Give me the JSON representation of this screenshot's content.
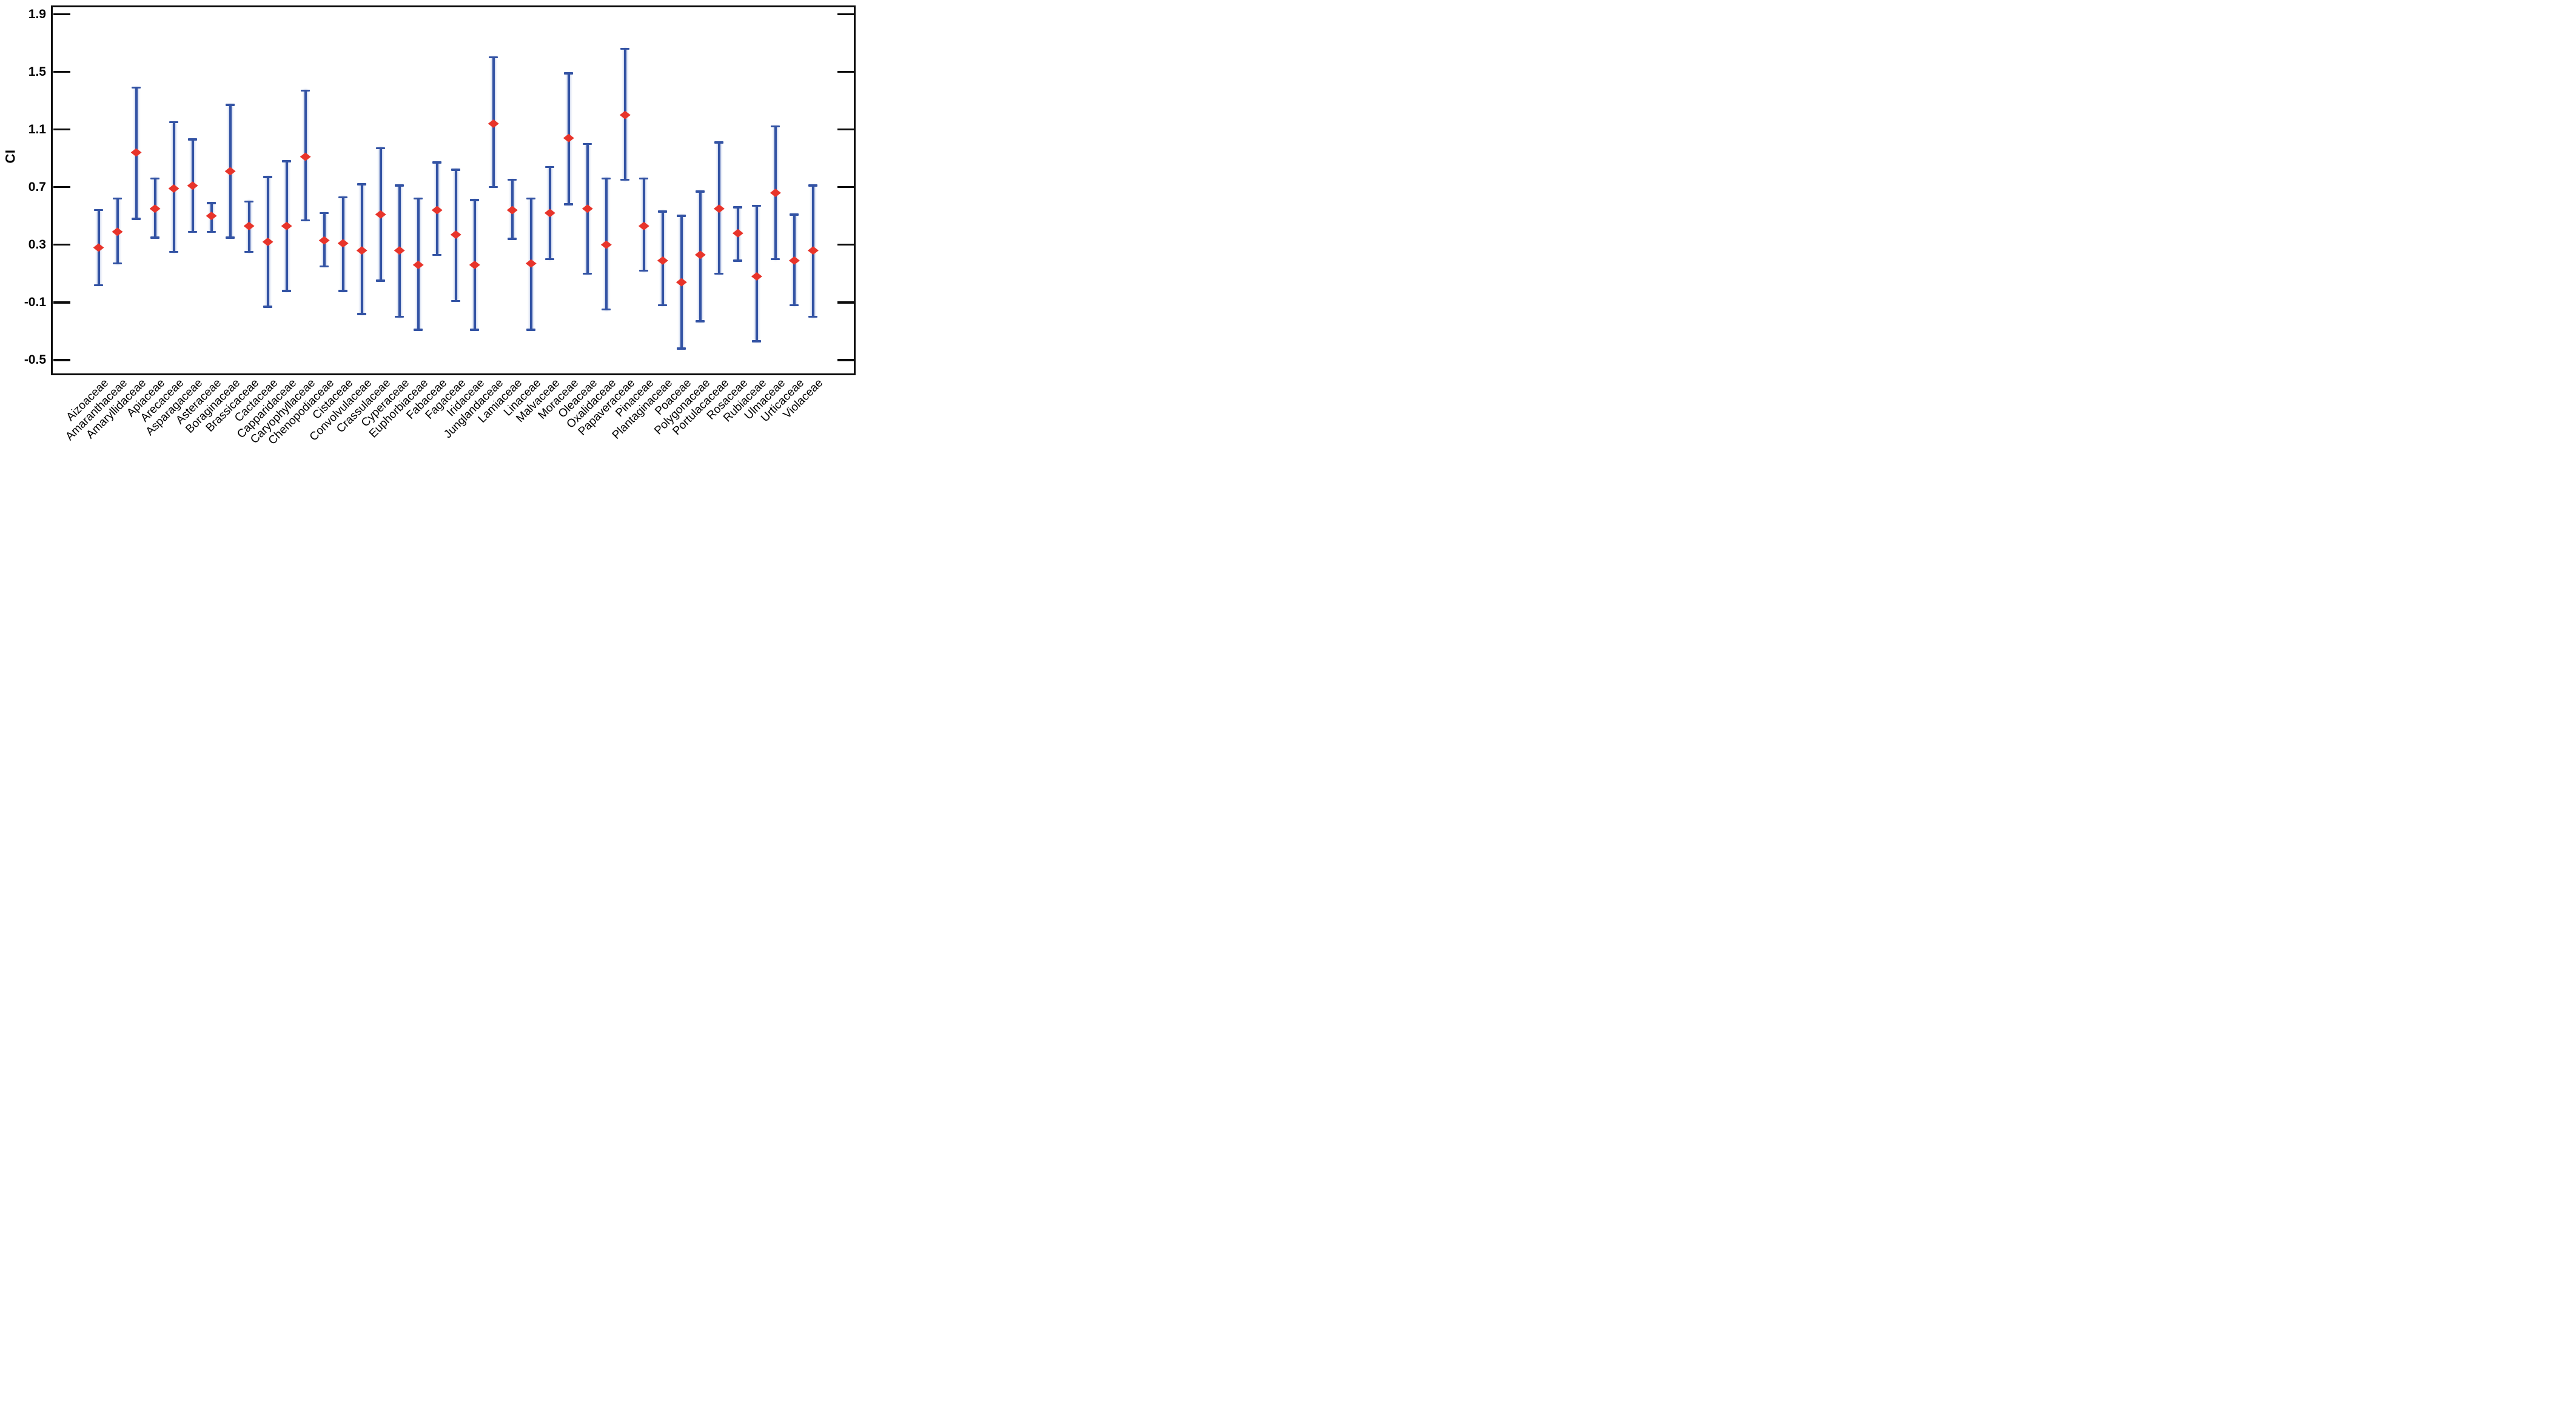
{
  "figure": {
    "background": "#ffffff"
  },
  "colors": {
    "marker_red": "#e8342a",
    "errorbar_blue": "#3353a4",
    "axis_black": "#0d0d0d"
  },
  "chart_data": {
    "type": "scatter",
    "subtype": "point-with-error-bars",
    "title": "",
    "xlabel": "",
    "ylabel": "CI",
    "ylim": [
      -0.58,
      1.96
    ],
    "yticks": [
      "1.9",
      "1.5",
      "1.1",
      "0.7",
      "0.3",
      "-0.1",
      "-0.5"
    ],
    "ytick_values": [
      1.9,
      1.5,
      1.1,
      0.7,
      0.3,
      -0.1,
      -0.5
    ],
    "grid": false,
    "legend": "none",
    "marker_shape": "diamond",
    "categories": [
      "Aizoaceae",
      "Amaranthaceae",
      "Amaryllidaceae",
      "Apiaceae",
      "Arecaceae",
      "Asparagaceae",
      "Asteraceae",
      "Boraginaceae",
      "Brassicaceae",
      "Cactaceae",
      "Capparidaceae",
      "Caryophyllaceae",
      "Chenopodiaceae",
      "Cistaceae",
      "Convolvulaceae",
      "Crassulaceae",
      "Cyperaceae",
      "Euphorbiaceae",
      "Fabaceae",
      "Fagaceae",
      "Iridaceae",
      "Junglandaceae",
      "Lamiaceae",
      "Linaceae",
      "Malvaceae",
      "Moraceae",
      "Oleaceae",
      "Oxalidaceae",
      "Papaveraceae",
      "Pinaceae",
      "Plantaginaceae",
      "Poaceae",
      "Polygonaceae",
      "Portulacaceae",
      "Rosaceae",
      "Rubiaceae",
      "Ulmaceae",
      "Urticaceae",
      "Violaceae"
    ],
    "points": [
      {
        "label": "Aizoaceae",
        "value": 0.28,
        "lo": 0.02,
        "hi": 0.54
      },
      {
        "label": "Amaranthaceae",
        "value": 0.39,
        "lo": 0.17,
        "hi": 0.62
      },
      {
        "label": "Amaryllidaceae",
        "value": 0.94,
        "lo": 0.48,
        "hi": 1.39
      },
      {
        "label": "Apiaceae",
        "value": 0.55,
        "lo": 0.35,
        "hi": 0.76
      },
      {
        "label": "Arecaceae",
        "value": 0.69,
        "lo": 0.25,
        "hi": 1.15
      },
      {
        "label": "Asparagaceae",
        "value": 0.71,
        "lo": 0.39,
        "hi": 1.03
      },
      {
        "label": "Asteraceae",
        "value": 0.5,
        "lo": 0.39,
        "hi": 0.59
      },
      {
        "label": "Boraginaceae",
        "value": 0.81,
        "lo": 0.35,
        "hi": 1.27
      },
      {
        "label": "Brassicaceae",
        "value": 0.43,
        "lo": 0.25,
        "hi": 0.6
      },
      {
        "label": "Cactaceae",
        "value": 0.32,
        "lo": -0.13,
        "hi": 0.77
      },
      {
        "label": "Capparidaceae",
        "value": 0.43,
        "lo": -0.02,
        "hi": 0.88
      },
      {
        "label": "Caryophyllaceae",
        "value": 0.91,
        "lo": 0.47,
        "hi": 1.37
      },
      {
        "label": "Chenopodiaceae",
        "value": 0.33,
        "lo": 0.15,
        "hi": 0.52
      },
      {
        "label": "Cistaceae",
        "value": 0.31,
        "lo": -0.02,
        "hi": 0.63
      },
      {
        "label": "Convolvulaceae",
        "value": 0.26,
        "lo": -0.18,
        "hi": 0.72
      },
      {
        "label": "Crassulaceae",
        "value": 0.51,
        "lo": 0.05,
        "hi": 0.97
      },
      {
        "label": "Cyperaceae",
        "value": 0.26,
        "lo": -0.2,
        "hi": 0.71
      },
      {
        "label": "Euphorbiaceae",
        "value": 0.16,
        "lo": -0.29,
        "hi": 0.62
      },
      {
        "label": "Fabaceae",
        "value": 0.54,
        "lo": 0.23,
        "hi": 0.87
      },
      {
        "label": "Fagaceae",
        "value": 0.37,
        "lo": -0.09,
        "hi": 0.82
      },
      {
        "label": "Iridaceae",
        "value": 0.16,
        "lo": -0.29,
        "hi": 0.61
      },
      {
        "label": "Junglandaceae",
        "value": 1.14,
        "lo": 0.7,
        "hi": 1.6
      },
      {
        "label": "Lamiaceae",
        "value": 0.54,
        "lo": 0.34,
        "hi": 0.75
      },
      {
        "label": "Linaceae",
        "value": 0.17,
        "lo": -0.29,
        "hi": 0.62
      },
      {
        "label": "Malvaceae",
        "value": 0.52,
        "lo": 0.2,
        "hi": 0.84
      },
      {
        "label": "Moraceae",
        "value": 1.04,
        "lo": 0.58,
        "hi": 1.49
      },
      {
        "label": "Oleaceae",
        "value": 0.55,
        "lo": 0.1,
        "hi": 1.0
      },
      {
        "label": "Oxalidaceae",
        "value": 0.3,
        "lo": -0.15,
        "hi": 0.76
      },
      {
        "label": "Papaveraceae",
        "value": 1.2,
        "lo": 0.75,
        "hi": 1.66
      },
      {
        "label": "Pinaceae",
        "value": 0.43,
        "lo": 0.12,
        "hi": 0.76
      },
      {
        "label": "Plantaginaceae",
        "value": 0.19,
        "lo": -0.12,
        "hi": 0.53
      },
      {
        "label": "Poaceae",
        "value": 0.04,
        "lo": -0.42,
        "hi": 0.5
      },
      {
        "label": "Polygonaceae",
        "value": 0.23,
        "lo": -0.23,
        "hi": 0.67
      },
      {
        "label": "Portulacaceae",
        "value": 0.55,
        "lo": 0.1,
        "hi": 1.01
      },
      {
        "label": "Rosaceae",
        "value": 0.38,
        "lo": 0.19,
        "hi": 0.56
      },
      {
        "label": "Rubiaceae",
        "value": 0.08,
        "lo": -0.37,
        "hi": 0.57
      },
      {
        "label": "Ulmaceae",
        "value": 0.66,
        "lo": 0.2,
        "hi": 1.12
      },
      {
        "label": "Urticaceae",
        "value": 0.19,
        "lo": -0.12,
        "hi": 0.51
      },
      {
        "label": "Violaceae",
        "value": 0.26,
        "lo": -0.2,
        "hi": 0.71
      }
    ],
    "layout_hints": {
      "tick_direction": "in",
      "ticks_on_right_edge": true,
      "xlabel_rotation_deg": -45,
      "first_point_fraction": 0.0568,
      "point_spacing_fraction": 0.023475
    }
  }
}
